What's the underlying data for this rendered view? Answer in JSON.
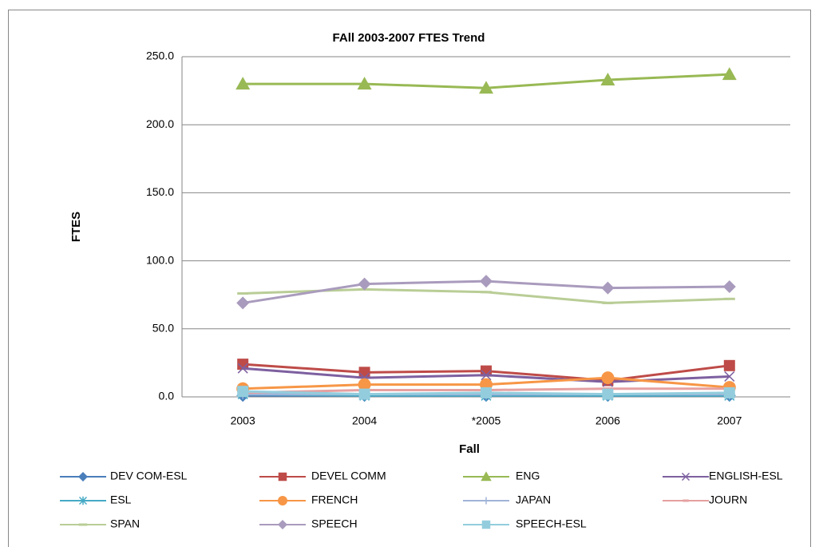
{
  "chart_data": {
    "type": "line",
    "title": "FAll 2003-2007  FTES Trend",
    "x_label": "Fall",
    "y_label": "FTES",
    "categories": [
      "2003",
      "2004",
      "*2005",
      "2006",
      "2007"
    ],
    "ylim": [
      0,
      250
    ],
    "yticks": [
      {
        "value": 0,
        "label": "0.0"
      },
      {
        "value": 50,
        "label": "50.0"
      },
      {
        "value": 100,
        "label": "100.0"
      },
      {
        "value": 150,
        "label": "150.0"
      },
      {
        "value": 200,
        "label": "200.0"
      },
      {
        "value": 250,
        "label": "250.0"
      }
    ],
    "grid": true,
    "legend": "bottom",
    "series": [
      {
        "name": "DEV COM-ESL",
        "color": "#4a7ebb",
        "marker": "diamond",
        "values": [
          1,
          1,
          1,
          1,
          1
        ]
      },
      {
        "name": "DEVEL COMM",
        "color": "#be4b48",
        "marker": "square",
        "values": [
          24,
          18,
          19,
          12,
          23
        ]
      },
      {
        "name": "ENG",
        "color": "#98b954",
        "marker": "triangle",
        "values": [
          230,
          230,
          227,
          233,
          237
        ]
      },
      {
        "name": "ENGLISH-ESL",
        "color": "#7d60a0",
        "marker": "x",
        "values": [
          21,
          14,
          16,
          11,
          15
        ]
      },
      {
        "name": "ESL",
        "color": "#46aac5",
        "marker": "star",
        "values": [
          2,
          1,
          1,
          1,
          1
        ]
      },
      {
        "name": "FRENCH",
        "color": "#f79646",
        "marker": "circle",
        "values": [
          6,
          9,
          9,
          14,
          7
        ]
      },
      {
        "name": "JAPAN",
        "color": "#9fb4d8",
        "marker": "plus",
        "values": [
          2,
          2,
          2,
          2,
          2
        ]
      },
      {
        "name": "JOURN",
        "color": "#e6a0a0",
        "marker": "dash",
        "values": [
          3,
          5,
          5,
          6,
          6
        ]
      },
      {
        "name": "SPAN",
        "color": "#b9cd96",
        "marker": "longdash",
        "values": [
          76,
          79,
          77,
          69,
          72
        ]
      },
      {
        "name": "SPEECH",
        "color": "#a99bbd",
        "marker": "diamond",
        "values": [
          69,
          83,
          85,
          80,
          81
        ]
      },
      {
        "name": "SPEECH-ESL",
        "color": "#93cddd",
        "marker": "square",
        "values": [
          4,
          2,
          3,
          2,
          3
        ]
      }
    ]
  }
}
